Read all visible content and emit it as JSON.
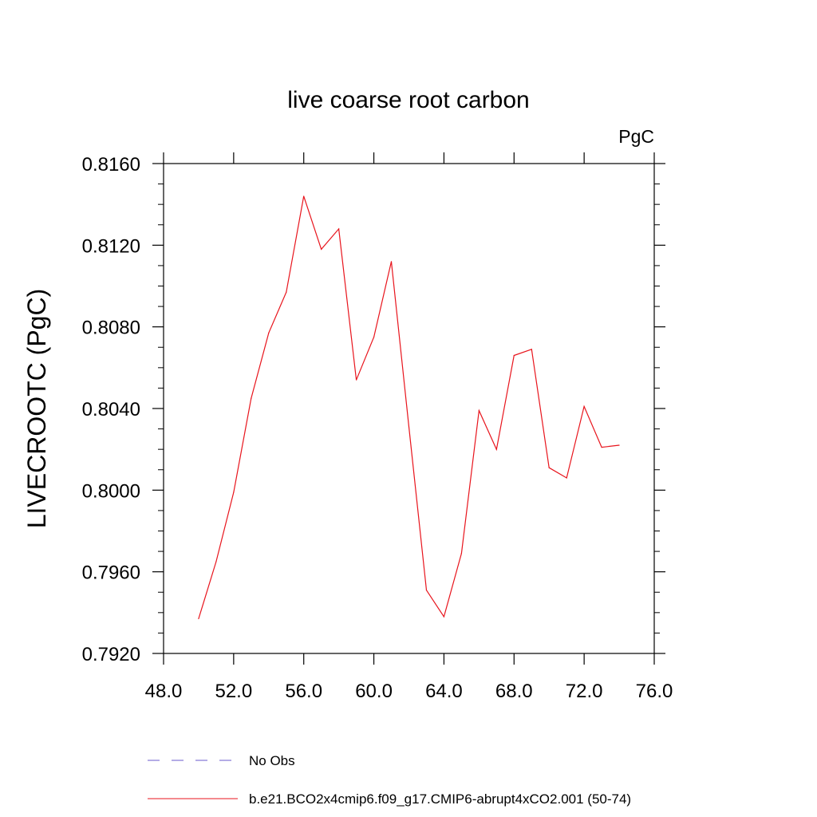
{
  "chart_data": {
    "type": "line",
    "title": "live coarse root carbon",
    "units_label": "PgC",
    "ylabel": "LIVECROOTC  (PgC)",
    "xlabel": "",
    "xlim": [
      48,
      76
    ],
    "ylim": [
      0.792,
      0.816
    ],
    "x_ticks": [
      "48.0",
      "52.0",
      "56.0",
      "60.0",
      "64.0",
      "68.0",
      "72.0",
      "76.0"
    ],
    "y_ticks": [
      "0.7920",
      "0.7960",
      "0.8000",
      "0.8040",
      "0.8080",
      "0.8120",
      "0.8160"
    ],
    "grid": false,
    "legend": [
      {
        "label": "No Obs",
        "color": "#6a5acd",
        "style": "dashed"
      },
      {
        "label": "b.e21.BCO2x4cmip6.f09_g17.CMIP6-abrupt4xCO2.001 (50-74)",
        "color": "#e8141c",
        "style": "solid"
      }
    ],
    "series": [
      {
        "name": "b.e21.BCO2x4cmip6.f09_g17.CMIP6-abrupt4xCO2.001 (50-74)",
        "color": "#e8141c",
        "x": [
          50,
          51,
          52,
          53,
          54,
          55,
          56,
          57,
          58,
          59,
          60,
          61,
          62,
          63,
          64,
          65,
          66,
          67,
          68,
          69,
          70,
          71,
          72,
          73,
          74
        ],
        "y": [
          0.7937,
          0.7965,
          0.7999,
          0.8045,
          0.8077,
          0.8097,
          0.8144,
          0.8118,
          0.8128,
          0.8054,
          0.8075,
          0.8112,
          0.8031,
          0.7951,
          0.7938,
          0.7969,
          0.8039,
          0.802,
          0.8066,
          0.8069,
          0.8011,
          0.8006,
          0.8041,
          0.8021,
          0.8022
        ]
      }
    ]
  }
}
